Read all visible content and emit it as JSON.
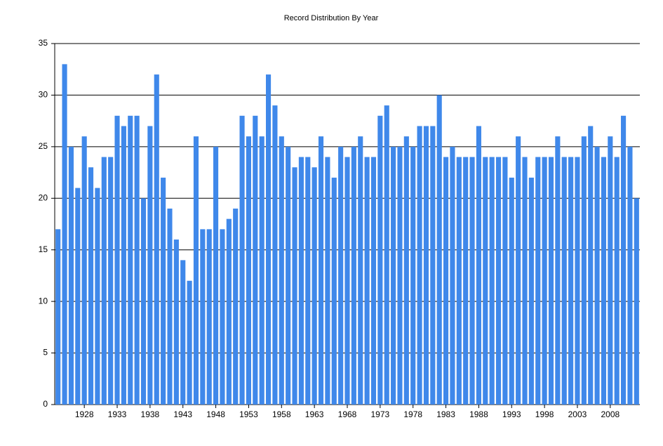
{
  "chart_data": {
    "type": "bar",
    "title": "Record Distribution By Year",
    "categories": [
      null,
      null,
      null,
      null,
      "1928",
      null,
      null,
      null,
      null,
      "1933",
      null,
      null,
      null,
      null,
      "1938",
      null,
      null,
      null,
      null,
      "1943",
      null,
      null,
      null,
      null,
      "1948",
      null,
      null,
      null,
      null,
      "1953",
      null,
      null,
      null,
      null,
      "1958",
      null,
      null,
      null,
      null,
      "1963",
      null,
      null,
      null,
      null,
      "1968",
      null,
      null,
      null,
      null,
      "1973",
      null,
      null,
      null,
      null,
      "1978",
      null,
      null,
      null,
      null,
      "1983",
      null,
      null,
      null,
      null,
      "1988",
      null,
      null,
      null,
      null,
      "1993",
      null,
      null,
      null,
      null,
      "1998",
      null,
      null,
      null,
      null,
      "2003",
      null,
      null,
      null,
      null,
      "2008",
      null,
      null,
      null,
      null
    ],
    "values": [
      17,
      33,
      25,
      21,
      26,
      23,
      21,
      24,
      24,
      28,
      27,
      28,
      28,
      20,
      27,
      32,
      22,
      19,
      16,
      14,
      12,
      26,
      17,
      17,
      25,
      17,
      18,
      19,
      28,
      26,
      28,
      26,
      32,
      29,
      26,
      25,
      23,
      24,
      24,
      23,
      26,
      24,
      22,
      25,
      24,
      25,
      26,
      24,
      24,
      28,
      29,
      25,
      25,
      26,
      25,
      27,
      27,
      27,
      30,
      24,
      25,
      24,
      24,
      24,
      27,
      24,
      24,
      24,
      24,
      22,
      26,
      24,
      22,
      24,
      24,
      24,
      26,
      24,
      24,
      24,
      26,
      27,
      25,
      24,
      26,
      24,
      28,
      25,
      20
    ],
    "color": "#3f88ea",
    "ylim": [
      0,
      35
    ],
    "yticks": [
      0,
      5,
      10,
      15,
      20,
      25,
      30,
      35
    ],
    "grid": true
  }
}
